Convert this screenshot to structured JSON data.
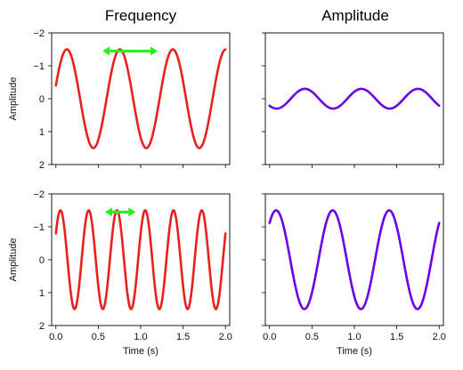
{
  "column_titles": [
    "Frequency",
    "Amplitude"
  ],
  "colors": {
    "red_series": "#e8211d",
    "purple_series": "#6a00e6",
    "arrow": "#22ee22",
    "axes": "#000000"
  },
  "chart_data": [
    {
      "type": "line",
      "panel": "top-left",
      "column_title": "Frequency",
      "xlabel": "",
      "ylabel": "Amplitude",
      "xlim": [
        -0.05,
        2.05
      ],
      "ylim": [
        2,
        -2
      ],
      "y_inverted": true,
      "xticks": [
        0.0,
        0.5,
        1.0,
        1.5,
        2.0
      ],
      "xtick_labels": [
        "",
        "",
        "",
        "",
        ""
      ],
      "yticks": [
        -2,
        -1,
        0,
        1,
        2
      ],
      "ytick_labels": [
        "−2",
        "−1",
        "0",
        "1",
        "2"
      ],
      "series": [
        {
          "formula": "y = 1.5*sin(2*pi*1.6*t - 2.87)",
          "t_range": [
            0,
            2
          ],
          "color": "#e8211d"
        }
      ],
      "annotations": [
        {
          "type": "double-arrow",
          "x_from": 0.55,
          "x_to": 1.2,
          "y": -1.45,
          "color": "#22ee22"
        }
      ]
    },
    {
      "type": "line",
      "panel": "top-right",
      "column_title": "Amplitude",
      "xlabel": "",
      "ylabel": "",
      "xlim": [
        -0.05,
        2.05
      ],
      "ylim": [
        2,
        -2
      ],
      "y_inverted": true,
      "xticks": [
        0.0,
        0.5,
        1.0,
        1.5,
        2.0
      ],
      "xtick_labels": [
        "",
        "",
        "",
        "",
        ""
      ],
      "yticks": [
        -2,
        -1,
        0,
        1,
        2
      ],
      "ytick_labels": [
        "",
        "",
        "",
        "",
        ""
      ],
      "series": [
        {
          "formula": "y = 0.3*sin(2*pi*1.5*t + 0.79)",
          "t_range": [
            0,
            2
          ],
          "color": "#6a00e6"
        }
      ]
    },
    {
      "type": "line",
      "panel": "bottom-left",
      "column_title": "",
      "xlabel": "Time (s)",
      "ylabel": "Amplitude",
      "xlim": [
        -0.05,
        2.05
      ],
      "ylim": [
        2,
        -2
      ],
      "y_inverted": true,
      "xticks": [
        0.0,
        0.5,
        1.0,
        1.5,
        2.0
      ],
      "xtick_labels": [
        "0.0",
        "0.5",
        "1.0",
        "1.5",
        "2.0"
      ],
      "yticks": [
        -2,
        -1,
        0,
        1,
        2
      ],
      "ytick_labels": [
        "−2",
        "−1",
        "0",
        "1",
        "2"
      ],
      "series": [
        {
          "formula": "y = 1.5*sin(2*pi*3.0*t - 2.58)",
          "t_range": [
            0,
            2
          ],
          "color": "#e8211d"
        }
      ],
      "annotations": [
        {
          "type": "double-arrow",
          "x_from": 0.58,
          "x_to": 0.94,
          "y": -1.45,
          "color": "#22ee22"
        }
      ]
    },
    {
      "type": "line",
      "panel": "bottom-right",
      "column_title": "",
      "xlabel": "Time (s)",
      "ylabel": "",
      "xlim": [
        -0.05,
        2.05
      ],
      "ylim": [
        2,
        -2
      ],
      "y_inverted": true,
      "xticks": [
        0.0,
        0.5,
        1.0,
        1.5,
        2.0
      ],
      "xtick_labels": [
        "0.0",
        "0.5",
        "1.0",
        "1.5",
        "2.0"
      ],
      "yticks": [
        -2,
        -1,
        0,
        1,
        2
      ],
      "ytick_labels": [
        "",
        "",
        "",
        "",
        ""
      ],
      "series": [
        {
          "formula": "y = 1.5*sin(2*pi*1.5*t - 2.3)",
          "t_range": [
            0,
            2
          ],
          "color": "#6a00e6"
        }
      ]
    }
  ]
}
